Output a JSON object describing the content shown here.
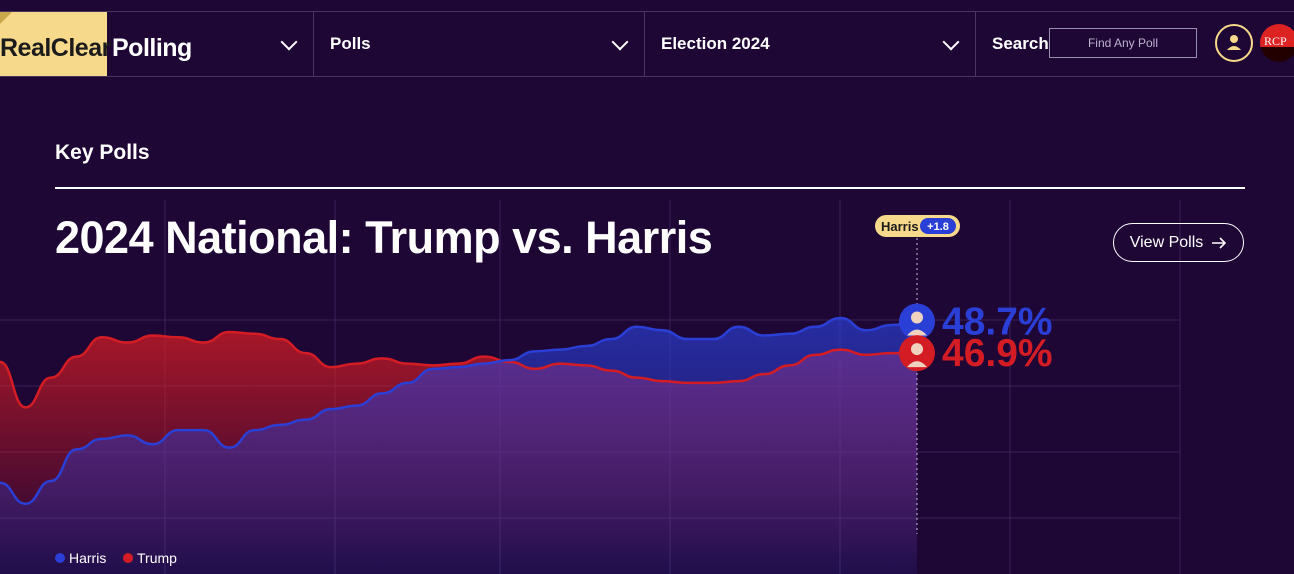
{
  "nav": {
    "logo_realclear": "RealClear",
    "logo_polling": "Polling",
    "menu_polls": "Polls",
    "menu_election": "Election 2024",
    "search_label": "Search",
    "search_placeholder": "Find Any Poll",
    "rcp_badge": "RCP"
  },
  "section": {
    "title": "Key Polls"
  },
  "view_polls_label": "View Polls",
  "colors": {
    "harris": "#2a3fd6",
    "trump": "#d41c24",
    "background": "#1e0635",
    "accent": "#f6d98a"
  },
  "chart_data": {
    "type": "area",
    "title": "2024 National: Trump vs. Harris",
    "leader_badge": {
      "name": "Harris",
      "spread": "+1.8"
    },
    "grid": true,
    "legend": "bottom-left",
    "series": [
      {
        "name": "Harris",
        "current_label": "48.7%",
        "values": [
          39.5,
          38.3,
          39.6,
          41.4,
          42.0,
          42.2,
          41.7,
          42.5,
          42.5,
          41.5,
          42.5,
          42.8,
          43.1,
          43.7,
          43.9,
          44.6,
          45.2,
          46.0,
          46.1,
          46.3,
          46.5,
          47.0,
          47.1,
          47.3,
          47.7,
          48.4,
          48.2,
          47.7,
          47.7,
          48.4,
          47.9,
          48.0,
          48.4,
          48.9,
          48.2,
          48.5,
          48.7
        ]
      },
      {
        "name": "Trump",
        "current_label": "46.9%",
        "values": [
          46.4,
          43.8,
          45.5,
          46.7,
          47.8,
          47.5,
          47.9,
          47.8,
          47.5,
          48.1,
          48.0,
          47.7,
          46.9,
          46.1,
          46.3,
          46.6,
          46.3,
          46.2,
          46.3,
          46.7,
          46.4,
          46.0,
          46.3,
          46.2,
          45.9,
          45.5,
          45.3,
          45.2,
          45.2,
          45.3,
          45.7,
          46.2,
          46.8,
          47.1,
          46.8,
          46.9,
          46.9
        ]
      }
    ],
    "ylim": [
      37.6,
      50.5
    ]
  }
}
